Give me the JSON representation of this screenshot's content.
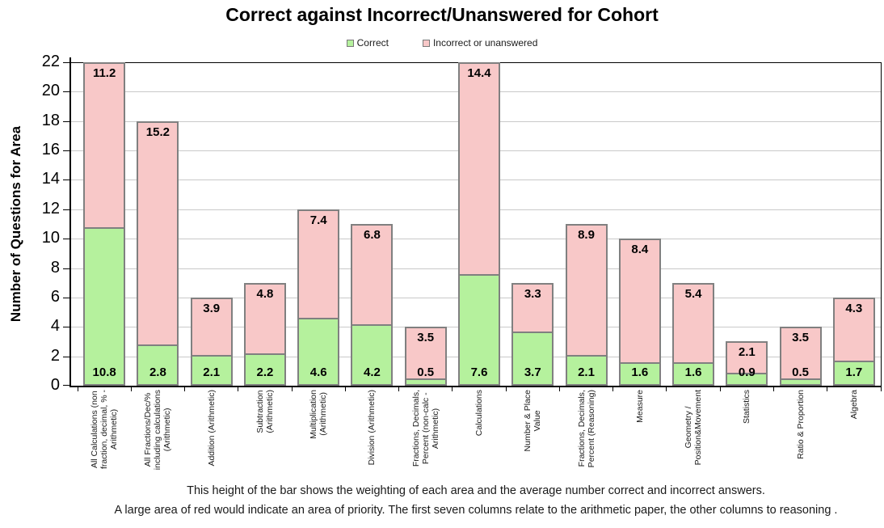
{
  "title": "Correct against Incorrect/Unanswered for Cohort",
  "legend": {
    "correct_label": "Correct",
    "incorrect_label": "Incorrect or unanswered"
  },
  "footer": {
    "line1": "This height of the bar shows the weighting of each area and the average number correct and incorrect answers.",
    "line2": "A large area of red would indicate an area of priority. The first seven columns relate to the arithmetic paper, the other columns to reasoning ."
  },
  "colors": {
    "correct_fill": "#b5f19d",
    "incorrect_fill": "#f8c8c8",
    "bar_border": "#808080",
    "gridline": "#c9c9c9",
    "axis": "#000000"
  },
  "chart_data": {
    "type": "bar",
    "stacked": true,
    "title": "Correct against Incorrect/Unanswered for Cohort",
    "xlabel": "",
    "ylabel": "Number of Questions for Area",
    "ylim": [
      0,
      22
    ],
    "ytick_step": 2,
    "grid": true,
    "legend_position": "top",
    "categories": [
      "All Calculations (non\nfraction, decimal, % -\nArithmetic)",
      "All Fractions/Dec/%\nincluding calculations\n(Arithmetic)",
      "Addition (Arithmetic)",
      "Subtraction\n(Arithmetic)",
      "Multiplication\n(Arithmetic)",
      "Division (Arithmetic)",
      "Fractions, Decimals,\nPercent (non-calc -\nArithmetic)",
      "Calculations",
      "Number & Place\nValue",
      "Fractions, Decimals,\nPercent (Reasoning)",
      "Measure",
      "Geometry /\nPosition&Movement",
      "Statistics",
      "Ratio & Proportion",
      "Algebra"
    ],
    "series": [
      {
        "name": "Correct",
        "values": [
          10.8,
          2.8,
          2.1,
          2.2,
          4.6,
          4.2,
          0.5,
          7.6,
          3.7,
          2.1,
          1.6,
          1.6,
          0.9,
          0.5,
          1.7
        ]
      },
      {
        "name": "Incorrect or unanswered",
        "values": [
          11.2,
          15.2,
          3.9,
          4.8,
          7.4,
          6.8,
          3.5,
          14.4,
          3.3,
          8.9,
          8.4,
          5.4,
          2.1,
          3.5,
          4.3
        ]
      }
    ]
  }
}
